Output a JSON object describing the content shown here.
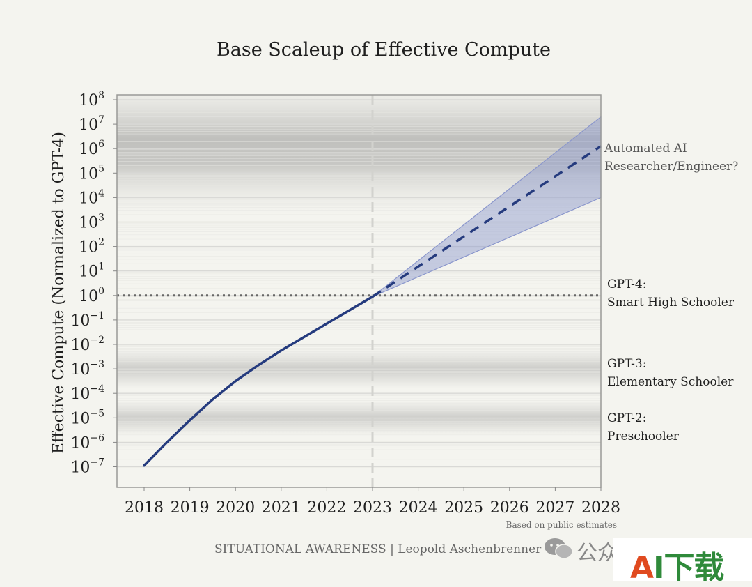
{
  "chart_data": {
    "type": "line",
    "title": "Base Scaleup of Effective Compute",
    "ylabel": "Effective Compute (Normalized to GPT-4)",
    "xlabel": "",
    "y_scale": "log",
    "ylim_exponent": [
      -7.8,
      8
    ],
    "xlim": [
      2017.4,
      2028
    ],
    "x_ticks": [
      "2018",
      "2019",
      "2020",
      "2021",
      "2022",
      "2023",
      "2024",
      "2025",
      "2026",
      "2027",
      "2028"
    ],
    "y_ticks": [
      {
        "base": "10",
        "exp": "8"
      },
      {
        "base": "10",
        "exp": "7"
      },
      {
        "base": "10",
        "exp": "6"
      },
      {
        "base": "10",
        "exp": "5"
      },
      {
        "base": "10",
        "exp": "4"
      },
      {
        "base": "10",
        "exp": "3"
      },
      {
        "base": "10",
        "exp": "2"
      },
      {
        "base": "10",
        "exp": "1"
      },
      {
        "base": "10",
        "exp": "0"
      },
      {
        "base": "10",
        "exp": "−1"
      },
      {
        "base": "10",
        "exp": "−2"
      },
      {
        "base": "10",
        "exp": "−3"
      },
      {
        "base": "10",
        "exp": "−4"
      },
      {
        "base": "10",
        "exp": "−5"
      },
      {
        "base": "10",
        "exp": "−6"
      },
      {
        "base": "10",
        "exp": "−7"
      }
    ],
    "y_tick_values_log10": [
      8,
      7,
      6,
      5,
      4,
      3,
      2,
      1,
      0,
      -1,
      -2,
      -3,
      -4,
      -5,
      -6,
      -7
    ],
    "grid": true,
    "series": [
      {
        "style": "solid",
        "color": "#253b7e",
        "x": [
          2018,
          2018.5,
          2019,
          2019.5,
          2020,
          2020.5,
          2021,
          2021.5,
          2022,
          2022.5,
          2023
        ],
        "y_log10": [
          -6.95,
          -6.0,
          -5.1,
          -4.25,
          -3.5,
          -2.85,
          -2.25,
          -1.7,
          -1.15,
          -0.6,
          -0.05
        ]
      },
      {
        "style": "dashed",
        "color": "#253b7e",
        "x": [
          2023,
          2028
        ],
        "y_log10": [
          -0.05,
          6.1
        ]
      }
    ],
    "uncertainty_band": {
      "x": [
        2023,
        2028
      ],
      "upper_log10": [
        -0.05,
        7.3
      ],
      "lower_log10": [
        -0.05,
        4.0
      ],
      "color": "#8a96cc"
    },
    "vertical_marker_x": 2023,
    "reference_line_log10": 0,
    "shaded_bands": [
      {
        "center_log10": 5.8,
        "half_width": 2.7
      },
      {
        "center_log10": -3.0,
        "half_width": 0.8
      },
      {
        "center_log10": -5.0,
        "half_width": 0.7
      }
    ],
    "annotations": [
      {
        "line1": "Automated AI",
        "line2": "Researcher/Engineer?",
        "color": "#555555"
      },
      {
        "line1": "GPT-4:",
        "line2": "Smart High Schooler",
        "color": "#1f1f1f"
      },
      {
        "line1": "GPT-3:",
        "line2": "Elementary Schooler",
        "color": "#1f1f1f"
      },
      {
        "line1": "GPT-2:",
        "line2": "Preschooler",
        "color": "#1f1f1f"
      }
    ],
    "source_note": "Based on public estimates"
  },
  "footer": {
    "byline": "SITUATIONAL AWARENESS | Leopold Aschenbrenner",
    "watermark_text": "公众号",
    "logo_a": "A",
    "logo_i": "I",
    "logo_cn": "下载"
  },
  "colors": {
    "background": "#f4f4ef",
    "line": "#253b7e",
    "band": "#8a96cc",
    "logo_a": "#e04a1f",
    "logo_i": "#2f8a3a",
    "logo_cn": "#2f8a3a"
  }
}
